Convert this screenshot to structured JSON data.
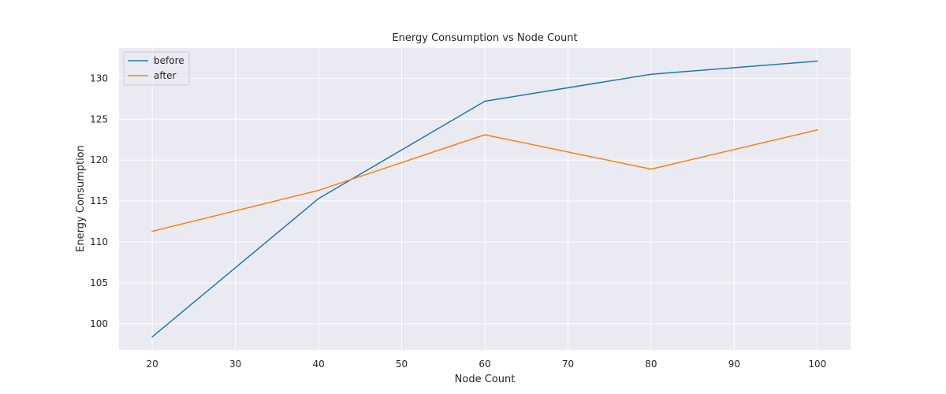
{
  "chart_data": {
    "type": "line",
    "title": "Energy Consumption vs Node Count",
    "xlabel": "Node Count",
    "ylabel": "Energy Consumption",
    "x": [
      20,
      40,
      60,
      80,
      100
    ],
    "series": [
      {
        "name": "before",
        "color": "#1f77b4",
        "values": [
          98.4,
          115.3,
          127.2,
          130.5,
          132.1
        ]
      },
      {
        "name": "after",
        "color": "#ff7f0e",
        "values": [
          111.3,
          116.3,
          123.1,
          118.9,
          123.7
        ]
      }
    ],
    "xlim": [
      16,
      104
    ],
    "ylim": [
      96.8,
      133.7
    ],
    "xticks": [
      20,
      30,
      40,
      50,
      60,
      70,
      80,
      90,
      100
    ],
    "yticks": [
      100,
      105,
      110,
      115,
      120,
      125,
      130
    ],
    "grid": true,
    "legend_position": "top-left",
    "background_color": "#eaeaf2",
    "grid_color": "#ffffff"
  }
}
